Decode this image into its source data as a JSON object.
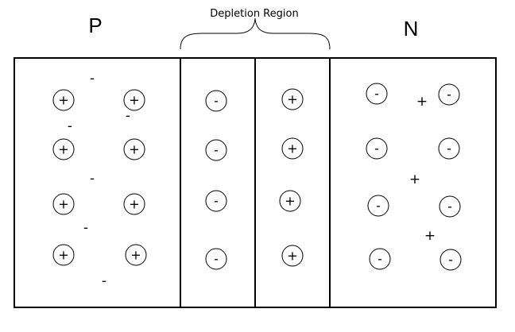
{
  "labels": {
    "p": "P",
    "n": "N",
    "depletion": "Depletion Region"
  },
  "symbols": {
    "positive": "+",
    "negative": "-"
  },
  "colors": {
    "stroke": "#000000",
    "background": "#ffffff"
  },
  "regions": [
    {
      "name": "p-region",
      "ion_sign": "+",
      "ion_rows": 4,
      "ion_cols": 2,
      "free_carrier_sign": "-",
      "free_carrier_count": 6
    },
    {
      "name": "depletion-p-side",
      "ion_sign": "-",
      "ion_rows": 4,
      "ion_cols": 1,
      "free_carrier_count": 0
    },
    {
      "name": "depletion-n-side",
      "ion_sign": "+",
      "ion_rows": 4,
      "ion_cols": 1,
      "free_carrier_count": 0
    },
    {
      "name": "n-region",
      "ion_sign": "-",
      "ion_rows": 4,
      "ion_cols": 2,
      "free_carrier_sign": "+",
      "free_carrier_count": 3
    }
  ]
}
